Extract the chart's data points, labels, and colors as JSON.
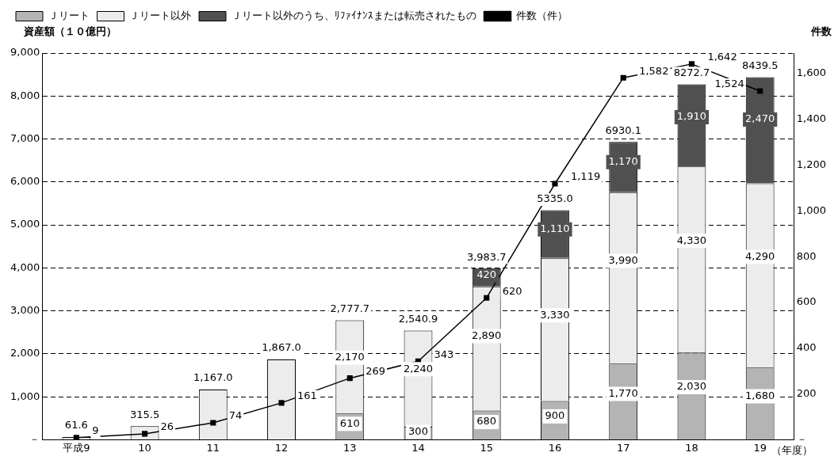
{
  "chart_data": {
    "type": "bar",
    "stacked": true,
    "categories": [
      "平成9",
      "10",
      "11",
      "12",
      "13",
      "14",
      "15",
      "16",
      "17",
      "18",
      "19"
    ],
    "xlabel": "（年度）",
    "ylabel": "資産額（１０億円）",
    "y2label": "件数",
    "series": [
      {
        "name": "Ｊリート",
        "color": "#b4b4b4",
        "values": [
          null,
          null,
          null,
          null,
          610,
          300,
          680,
          900,
          1770,
          2030,
          1680
        ],
        "value_labels": [
          null,
          null,
          null,
          null,
          "610",
          "300",
          "680",
          "900",
          "1,770",
          "2,030",
          "1,680"
        ]
      },
      {
        "name": "Ｊリート以外",
        "color": "#ececec",
        "values": [
          61.6,
          315.5,
          1167.0,
          1867.0,
          2170,
          2240,
          2890,
          3330,
          3990,
          4330,
          4290
        ],
        "value_labels": [
          null,
          null,
          null,
          null,
          "2,170",
          "2,240",
          "2,890",
          "3,330",
          "3,990",
          "4,330",
          "4,290"
        ]
      },
      {
        "name": "Ｊリート以外のうち、ﾘﾌｧｲﾅﾝｽまたは転売されたもの",
        "color": "#505050",
        "values": [
          null,
          null,
          null,
          null,
          null,
          null,
          420,
          1110,
          1170,
          1910,
          2470
        ],
        "value_labels": [
          null,
          null,
          null,
          null,
          null,
          null,
          "420",
          "1,110",
          "1,170",
          "1,910",
          "2,470"
        ]
      },
      {
        "name": "件数（件）",
        "type": "line",
        "axis": "y2",
        "color": "#000000",
        "values": [
          9,
          26,
          74,
          161,
          269,
          343,
          620,
          1119,
          1582,
          1642,
          1524
        ],
        "value_labels": [
          "9",
          "26",
          "74",
          "161",
          "269",
          "343",
          "620",
          "1,119",
          "1,582",
          "1,642",
          "1,524"
        ]
      }
    ],
    "annotations": [
      {
        "text": "61.6",
        "x": "平成9",
        "y": 61.6
      },
      {
        "text": "315.5",
        "x": "10",
        "y": 315.5
      },
      {
        "text": "1,167.0",
        "x": "11",
        "y": 1167.0
      },
      {
        "text": "1,867.0",
        "x": "12",
        "y": 1867.0
      },
      {
        "text": "2,777.7",
        "x": "13",
        "y": 2777.7
      },
      {
        "text": "2,540.9",
        "x": "14",
        "y": 2540.9
      },
      {
        "text": "3,983.7",
        "x": "15",
        "y": 3983.7
      },
      {
        "text": "5335.0",
        "x": "16",
        "y": 5335.0
      },
      {
        "text": "6930.1",
        "x": "17",
        "y": 6930.1
      },
      {
        "text": "8272.7",
        "x": "18",
        "y": 8272.7
      },
      {
        "text": "8439.5",
        "x": "19",
        "y": 8439.5
      }
    ],
    "ylim": [
      0,
      9000
    ],
    "yticks": [
      {
        "value": 0,
        "label": "－"
      },
      {
        "value": 1000,
        "label": "1,000"
      },
      {
        "value": 2000,
        "label": "2,000"
      },
      {
        "value": 3000,
        "label": "3,000"
      },
      {
        "value": 4000,
        "label": "4,000"
      },
      {
        "value": 5000,
        "label": "5,000"
      },
      {
        "value": 6000,
        "label": "6,000"
      },
      {
        "value": 7000,
        "label": "7,000"
      },
      {
        "value": 8000,
        "label": "8,000"
      },
      {
        "value": 9000,
        "label": "9,000"
      }
    ],
    "y2lim": [
      0,
      1690
    ],
    "y2ticks": [
      {
        "value": 0,
        "label": "－"
      },
      {
        "value": 200,
        "label": "200"
      },
      {
        "value": 400,
        "label": "400"
      },
      {
        "value": 600,
        "label": "600"
      },
      {
        "value": 800,
        "label": "800"
      },
      {
        "value": 1000,
        "label": "1,000"
      },
      {
        "value": 1200,
        "label": "1,200"
      },
      {
        "value": 1400,
        "label": "1,400"
      },
      {
        "value": 1600,
        "label": "1,600"
      }
    ],
    "grid": "y",
    "legend": "top",
    "marker": "square",
    "line_style": "solid"
  }
}
